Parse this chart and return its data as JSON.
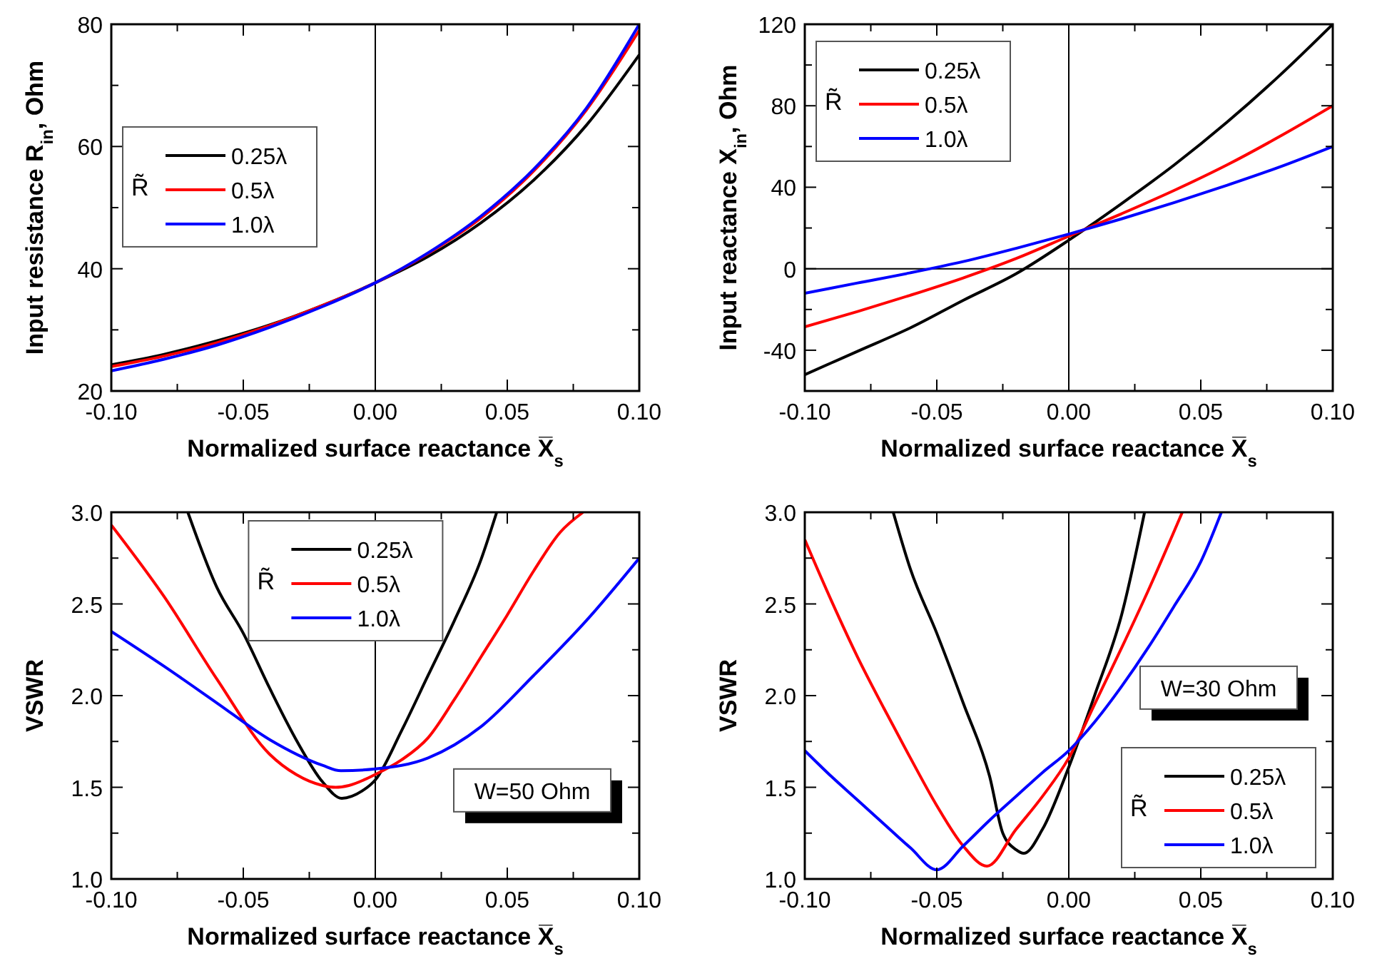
{
  "chart_data": [
    {
      "type": "line",
      "xlabel": "Normalized surface reactance X̅$_{s}$",
      "ylabel": "Input resistance R$_{in}$, Ohm",
      "legend_title": "R̃",
      "legend": "left",
      "xlim": [
        -0.1,
        0.1
      ],
      "ylim": [
        20,
        80
      ],
      "xticks": [
        {
          "value": -0.1,
          "label": "-0.10"
        },
        {
          "value": -0.075,
          "label": null
        },
        {
          "value": -0.05,
          "label": "-0.05"
        },
        {
          "value": -0.025,
          "label": null
        },
        {
          "value": 0,
          "label": "0.00"
        },
        {
          "value": 0.025,
          "label": null
        },
        {
          "value": 0.05,
          "label": "0.05"
        },
        {
          "value": 0.075,
          "label": null
        },
        {
          "value": 0.1,
          "label": "0.10"
        }
      ],
      "yticks": [
        20,
        {
          "value": 30,
          "label": null
        },
        40,
        {
          "value": 50,
          "label": null
        },
        60,
        {
          "value": 70,
          "label": null
        },
        80
      ],
      "ref_lines": [
        {
          "axis": "x",
          "value": 0,
          "color": "#000000"
        }
      ],
      "x": [
        -0.1,
        -0.08,
        -0.06,
        -0.04,
        -0.02,
        0,
        0.02,
        0.04,
        0.06,
        0.08,
        0.1
      ],
      "series": [
        {
          "name": "0.25λ",
          "color": "#000000",
          "values": [
            24.3,
            26.0,
            28.2,
            30.8,
            34.0,
            37.7,
            42.0,
            47.5,
            54.5,
            63.5,
            75
          ]
        },
        {
          "name": "0.5λ",
          "color": "#ff0000",
          "values": [
            24.0,
            25.7,
            27.9,
            30.7,
            34.0,
            37.7,
            42.5,
            48.3,
            56.0,
            66,
            79
          ]
        },
        {
          "name": "1.0λ",
          "color": "#0000ff",
          "values": [
            23.3,
            25.2,
            27.5,
            30.4,
            33.8,
            37.7,
            42.6,
            48.6,
            56.3,
            66.3,
            80
          ]
        }
      ]
    },
    {
      "type": "line",
      "xlabel": "Normalized surface reactance X̅$_{s}$",
      "ylabel": "Input reactance X$_{in}$, Ohm",
      "legend_title": "R̃",
      "legend": "top left",
      "xlim": [
        -0.1,
        0.1
      ],
      "ylim": [
        -60,
        120
      ],
      "xticks": [
        {
          "value": -0.1,
          "label": "-0.10"
        },
        {
          "value": -0.075,
          "label": null
        },
        {
          "value": -0.05,
          "label": "-0.05"
        },
        {
          "value": -0.025,
          "label": null
        },
        {
          "value": 0,
          "label": "0.00"
        },
        {
          "value": 0.025,
          "label": null
        },
        {
          "value": 0.05,
          "label": "0.05"
        },
        {
          "value": 0.075,
          "label": null
        },
        {
          "value": 0.1,
          "label": "0.10"
        }
      ],
      "yticks": [
        {
          "value": -60,
          "label": null
        },
        -40,
        {
          "value": -20,
          "label": null
        },
        0,
        {
          "value": 20,
          "label": null
        },
        40,
        {
          "value": 60,
          "label": null
        },
        80,
        {
          "value": 100,
          "label": null
        },
        120
      ],
      "ref_lines": [
        {
          "axis": "x",
          "value": 0,
          "color": "#000000"
        },
        {
          "axis": "y",
          "value": 0,
          "color": "#000000"
        }
      ],
      "x": [
        -0.1,
        -0.08,
        -0.06,
        -0.04,
        -0.02,
        0,
        0.02,
        0.04,
        0.06,
        0.08,
        0.1
      ],
      "series": [
        {
          "name": "0.25λ",
          "color": "#000000",
          "values": [
            -52,
            -40.5,
            -29,
            -15.5,
            -2.5,
            14,
            32,
            51,
            72,
            95,
            120
          ]
        },
        {
          "name": "0.5λ",
          "color": "#ff0000",
          "values": [
            -28.5,
            -21,
            -13,
            -4.5,
            5,
            16,
            27,
            38.5,
            51,
            65,
            80
          ]
        },
        {
          "name": "1.0λ",
          "color": "#0000ff",
          "values": [
            -12,
            -7,
            -2,
            3.5,
            10,
            17,
            24.5,
            32.5,
            41,
            50,
            60
          ]
        }
      ]
    },
    {
      "type": "line",
      "xlabel": "Normalized surface reactance X̅$_{s}$",
      "ylabel": "VSWR",
      "legend_title": "R̃",
      "legend": "top",
      "xlim": [
        -0.1,
        0.1
      ],
      "ylim": [
        1,
        3
      ],
      "xticks": [
        {
          "value": -0.1,
          "label": "-0.10"
        },
        {
          "value": -0.075,
          "label": null
        },
        {
          "value": -0.05,
          "label": "-0.05"
        },
        {
          "value": -0.025,
          "label": null
        },
        {
          "value": 0,
          "label": "0.00"
        },
        {
          "value": 0.025,
          "label": null
        },
        {
          "value": 0.05,
          "label": "0.05"
        },
        {
          "value": 0.075,
          "label": null
        },
        {
          "value": 0.1,
          "label": "0.10"
        }
      ],
      "yticks": [
        {
          "value": 1,
          "label": "1.0"
        },
        {
          "value": 1.25,
          "label": null
        },
        1.5,
        {
          "value": 1.75,
          "label": null
        },
        {
          "value": 2,
          "label": "2.0"
        },
        {
          "value": 2.25,
          "label": null
        },
        2.5,
        {
          "value": 2.75,
          "label": null
        },
        {
          "value": 3,
          "label": "3.0"
        }
      ],
      "ref_lines": [
        {
          "axis": "x",
          "value": 0,
          "color": "#000000"
        }
      ],
      "annotations": [
        "W=50 Ohm"
      ],
      "series": [
        {
          "name": "0.25λ",
          "color": "#000000",
          "x": [
            -0.071,
            -0.06,
            -0.05,
            -0.04,
            -0.03,
            -0.02,
            -0.0127,
            -0.005,
            0,
            0.01,
            0.02,
            0.03,
            0.04,
            0.046
          ],
          "values": [
            3.0,
            2.59,
            2.34,
            2.04,
            1.76,
            1.53,
            1.44,
            1.48,
            1.54,
            1.81,
            2.11,
            2.41,
            2.74,
            3.0
          ]
        },
        {
          "name": "0.5λ",
          "color": "#ff0000",
          "x": [
            -0.1,
            -0.08,
            -0.06,
            -0.04,
            -0.03,
            -0.02,
            -0.015,
            -0.01,
            0,
            0.01,
            0.02,
            0.03,
            0.04,
            0.05,
            0.06,
            0.07,
            0.0787
          ],
          "values": [
            2.93,
            2.54,
            2.09,
            1.68,
            1.57,
            1.51,
            1.5,
            1.51,
            1.57,
            1.65,
            1.77,
            1.98,
            2.21,
            2.44,
            2.68,
            2.89,
            3.0
          ]
        },
        {
          "name": "1.0λ",
          "color": "#0000ff",
          "x": [
            -0.1,
            -0.08,
            -0.06,
            -0.04,
            -0.02,
            -0.013,
            0,
            0.02,
            0.04,
            0.06,
            0.08,
            0.1
          ],
          "values": [
            2.35,
            2.16,
            1.96,
            1.76,
            1.62,
            1.59,
            1.6,
            1.66,
            1.83,
            2.11,
            2.41,
            2.75
          ]
        }
      ]
    },
    {
      "type": "line",
      "xlabel": "Normalized surface reactance X̅$_{s}$",
      "ylabel": "VSWR",
      "legend_title": "R̃",
      "legend": "bottom right",
      "xlim": [
        -0.1,
        0.1
      ],
      "ylim": [
        1,
        3
      ],
      "xticks": [
        {
          "value": -0.1,
          "label": "-0.10"
        },
        {
          "value": -0.075,
          "label": null
        },
        {
          "value": -0.05,
          "label": "-0.05"
        },
        {
          "value": -0.025,
          "label": null
        },
        {
          "value": 0,
          "label": "0.00"
        },
        {
          "value": 0.025,
          "label": null
        },
        {
          "value": 0.05,
          "label": "0.05"
        },
        {
          "value": 0.075,
          "label": null
        },
        {
          "value": 0.1,
          "label": "0.10"
        }
      ],
      "yticks": [
        {
          "value": 1,
          "label": "1.0"
        },
        {
          "value": 1.25,
          "label": null
        },
        1.5,
        {
          "value": 1.75,
          "label": null
        },
        {
          "value": 2,
          "label": "2.0"
        },
        {
          "value": 2.25,
          "label": null
        },
        2.5,
        {
          "value": 2.75,
          "label": null
        },
        {
          "value": 3,
          "label": "3.0"
        }
      ],
      "ref_lines": [
        {
          "axis": "x",
          "value": 0,
          "color": "#000000"
        }
      ],
      "annotations": [
        "W=30 Ohm"
      ],
      "series": [
        {
          "name": "0.25λ",
          "color": "#000000",
          "x": [
            -0.0665,
            -0.06,
            -0.05,
            -0.04,
            -0.03,
            -0.025,
            -0.02,
            -0.017,
            -0.01,
            0,
            0.01,
            0.02,
            0.0287
          ],
          "values": [
            3.0,
            2.69,
            2.34,
            1.96,
            1.56,
            1.25,
            1.16,
            1.14,
            1.27,
            1.61,
            2.01,
            2.44,
            3.0
          ]
        },
        {
          "name": "0.5λ",
          "color": "#ff0000",
          "x": [
            -0.1,
            -0.09,
            -0.08,
            -0.07,
            -0.06,
            -0.05,
            -0.04,
            -0.031,
            -0.02,
            -0.01,
            0,
            0.01,
            0.02,
            0.03,
            0.043
          ],
          "values": [
            2.85,
            2.52,
            2.21,
            1.93,
            1.66,
            1.4,
            1.18,
            1.07,
            1.27,
            1.45,
            1.66,
            1.96,
            2.26,
            2.57,
            3.0
          ]
        },
        {
          "name": "1.0λ",
          "color": "#0000ff",
          "x": [
            -0.1,
            -0.09,
            -0.08,
            -0.07,
            -0.06,
            -0.05,
            -0.04,
            -0.03,
            -0.02,
            -0.01,
            0,
            0.01,
            0.02,
            0.03,
            0.04,
            0.05,
            0.0578
          ],
          "values": [
            1.7,
            1.56,
            1.43,
            1.3,
            1.17,
            1.05,
            1.18,
            1.32,
            1.45,
            1.58,
            1.7,
            1.86,
            2.05,
            2.26,
            2.49,
            2.73,
            3.0
          ]
        }
      ]
    }
  ]
}
